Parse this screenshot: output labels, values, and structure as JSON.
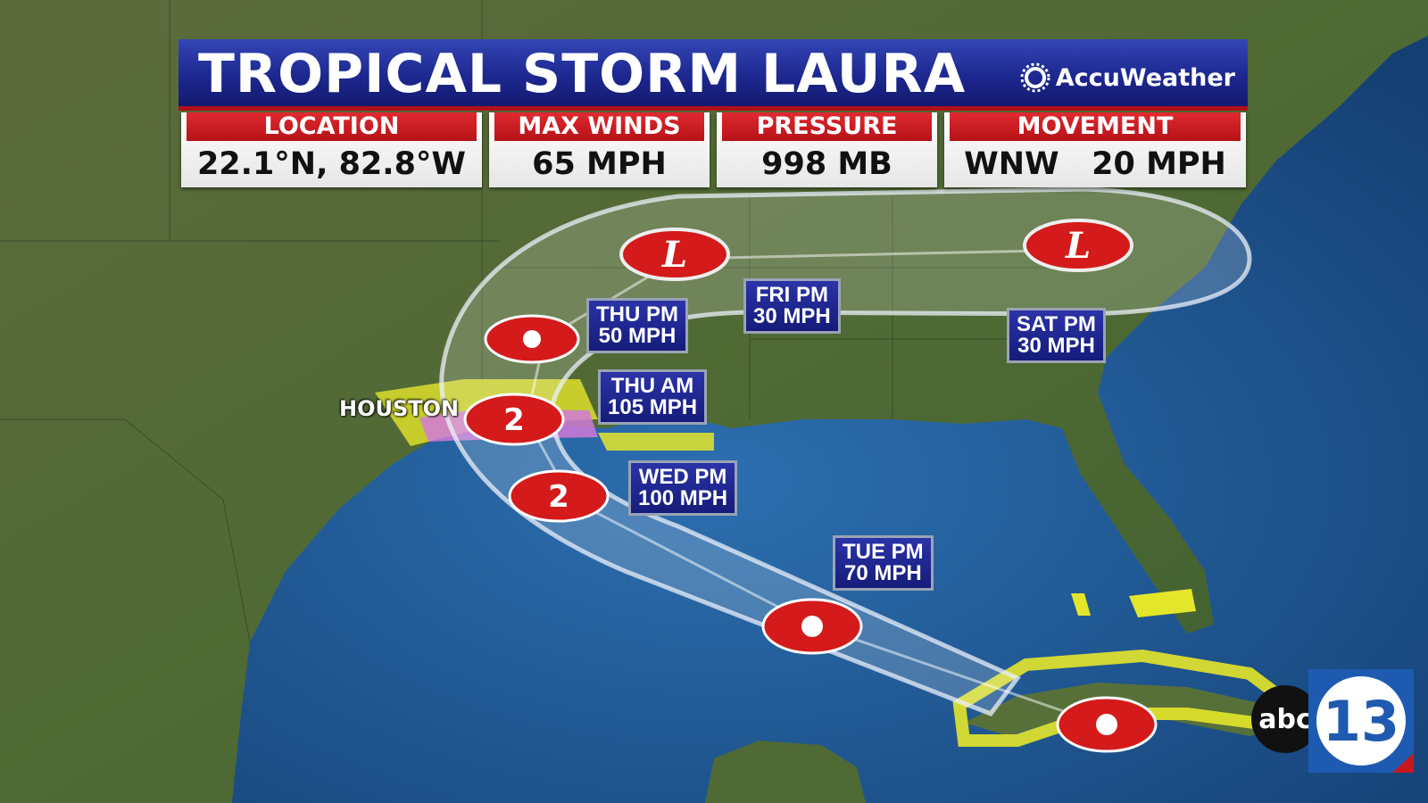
{
  "header": {
    "title": "TROPICAL STORM LAURA",
    "brand": "AccuWeather"
  },
  "stats": [
    {
      "label": "LOCATION",
      "value": "22.1°N, 82.8°W"
    },
    {
      "label": "MAX WINDS",
      "value": "65 MPH"
    },
    {
      "label": "PRESSURE",
      "value": "998 MB"
    },
    {
      "label": "MOVEMENT",
      "value": "WNW   20 MPH"
    }
  ],
  "forecast_points": [
    {
      "time": "TUE PM",
      "wind": "70 MPH",
      "category": ""
    },
    {
      "time": "WED PM",
      "wind": "100 MPH",
      "category": "2"
    },
    {
      "time": "THU AM",
      "wind": "105 MPH",
      "category": "2"
    },
    {
      "time": "THU PM",
      "wind": "50 MPH",
      "category": ""
    },
    {
      "time": "FRI PM",
      "wind": "30 MPH",
      "category": "L"
    },
    {
      "time": "SAT PM",
      "wind": "30 MPH",
      "category": "L"
    }
  ],
  "city_label": "HOUSTON",
  "logo": {
    "text": "abc",
    "number": "13"
  },
  "colors": {
    "header_blue": "#1d2890",
    "label_red": "#c8171e",
    "watch_yellow": "#e4e62a",
    "warning_pink": "#d07ad8",
    "storm_red": "#d41a1a"
  }
}
